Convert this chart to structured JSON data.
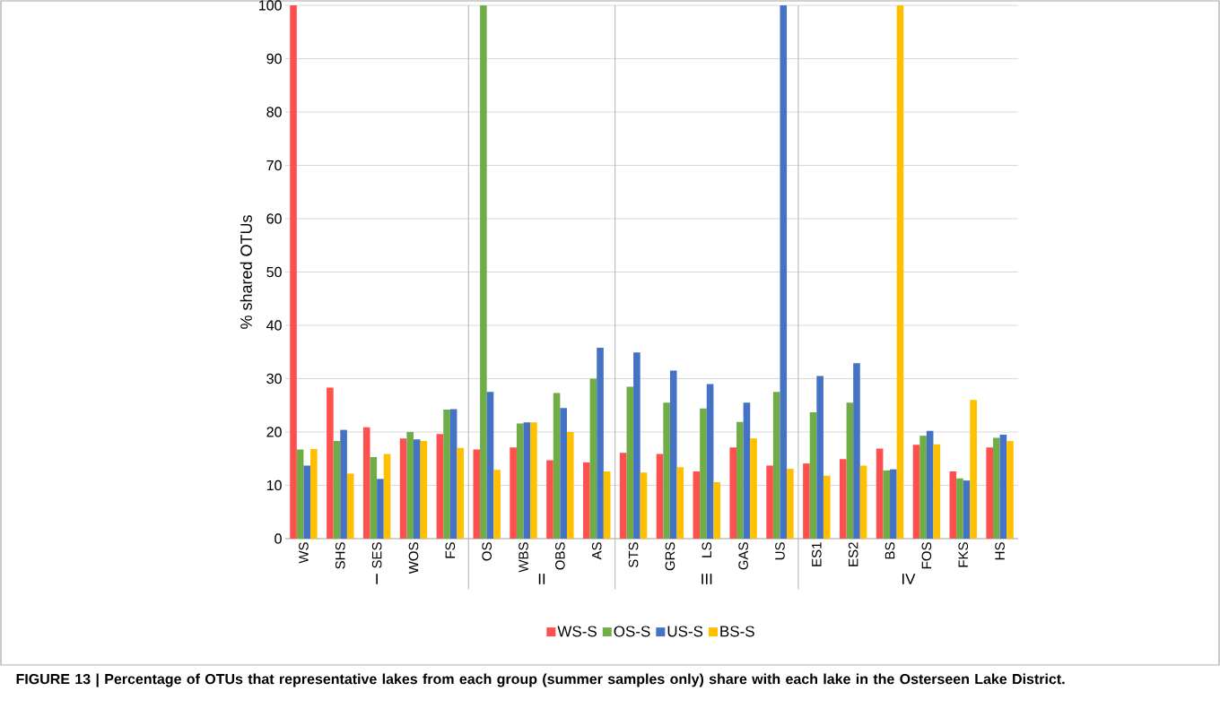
{
  "chart_data": {
    "type": "bar",
    "ylabel": "% shared OTUs",
    "categories": [
      "WS",
      "SHS",
      "SES",
      "WOS",
      "FS",
      "OS",
      "WBS",
      "OBS",
      "AS",
      "STS",
      "GRS",
      "LS",
      "GAS",
      "US",
      "ES1",
      "ES2",
      "BS",
      "FOS",
      "FKS",
      "HS"
    ],
    "series": [
      {
        "name": "WS-S",
        "color": "#ff5050",
        "values": [
          100,
          28.3,
          20.9,
          18.8,
          19.6,
          16.7,
          17.1,
          14.7,
          14.3,
          16.1,
          15.9,
          12.6,
          17.1,
          13.7,
          14.1,
          14.9,
          16.9,
          17.6,
          12.6,
          17.1
        ]
      },
      {
        "name": "OS-S",
        "color": "#70ad47",
        "values": [
          16.7,
          18.3,
          15.3,
          20,
          24.2,
          100,
          21.6,
          27.3,
          30,
          28.5,
          25.5,
          24.4,
          21.9,
          27.5,
          23.7,
          25.5,
          12.8,
          19.3,
          11.3,
          18.9
        ]
      },
      {
        "name": "US-S",
        "color": "#4472c4",
        "values": [
          13.7,
          20.4,
          11.2,
          18.6,
          24.3,
          27.5,
          21.8,
          24.5,
          35.8,
          34.9,
          31.5,
          29,
          25.5,
          100,
          30.5,
          32.9,
          13,
          20.2,
          10.9,
          19.5
        ]
      },
      {
        "name": "BS-S",
        "color": "#ffc000",
        "values": [
          16.8,
          12.2,
          15.9,
          18.3,
          17,
          12.9,
          21.8,
          20,
          12.6,
          12.4,
          13.4,
          10.6,
          18.8,
          13.1,
          11.8,
          13.7,
          100,
          17.7,
          26,
          18.3
        ]
      }
    ],
    "ylim": [
      0,
      100
    ],
    "yticks": [
      0,
      10,
      20,
      30,
      40,
      50,
      60,
      70,
      80,
      90,
      100
    ],
    "grid": "y",
    "legend": "bottom",
    "annotations": [
      "I",
      "II",
      "III",
      "IV",
      "**FIGURE 13 | Percentage of OTUs that representative lakes from each group (summer samples only) share with each lake in the Osterseen Lake District.**"
    ]
  }
}
